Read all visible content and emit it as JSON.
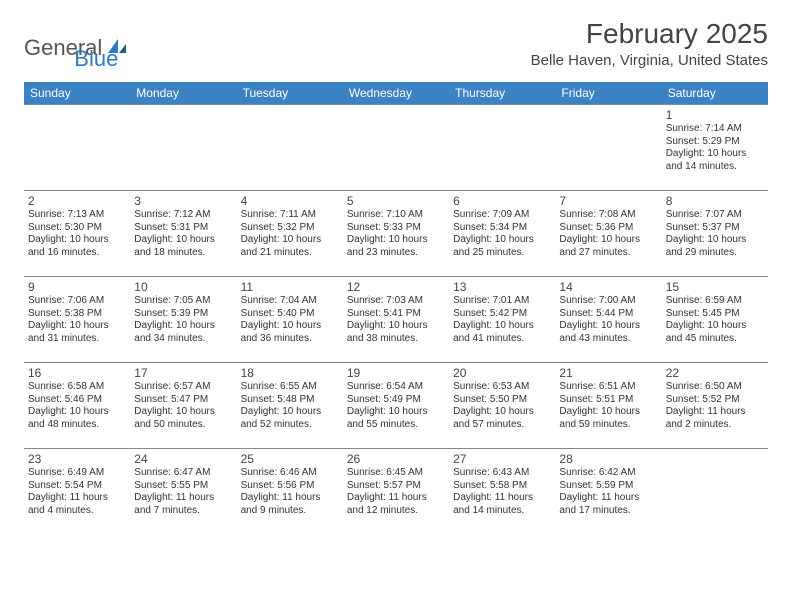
{
  "logo": {
    "general": "General",
    "blue": "Blue"
  },
  "title": "February 2025",
  "location": "Belle Haven, Virginia, United States",
  "colors": {
    "header_bg": "#3b82c4",
    "header_text": "#ffffff",
    "border": "#7a8a9a",
    "logo_blue": "#2f7bbf",
    "logo_gray": "#555555"
  },
  "weekdays": [
    "Sunday",
    "Monday",
    "Tuesday",
    "Wednesday",
    "Thursday",
    "Friday",
    "Saturday"
  ],
  "weeks": [
    [
      null,
      null,
      null,
      null,
      null,
      null,
      {
        "n": "1",
        "sr": "Sunrise: 7:14 AM",
        "ss": "Sunset: 5:29 PM",
        "dl": "Daylight: 10 hours and 14 minutes."
      }
    ],
    [
      {
        "n": "2",
        "sr": "Sunrise: 7:13 AM",
        "ss": "Sunset: 5:30 PM",
        "dl": "Daylight: 10 hours and 16 minutes."
      },
      {
        "n": "3",
        "sr": "Sunrise: 7:12 AM",
        "ss": "Sunset: 5:31 PM",
        "dl": "Daylight: 10 hours and 18 minutes."
      },
      {
        "n": "4",
        "sr": "Sunrise: 7:11 AM",
        "ss": "Sunset: 5:32 PM",
        "dl": "Daylight: 10 hours and 21 minutes."
      },
      {
        "n": "5",
        "sr": "Sunrise: 7:10 AM",
        "ss": "Sunset: 5:33 PM",
        "dl": "Daylight: 10 hours and 23 minutes."
      },
      {
        "n": "6",
        "sr": "Sunrise: 7:09 AM",
        "ss": "Sunset: 5:34 PM",
        "dl": "Daylight: 10 hours and 25 minutes."
      },
      {
        "n": "7",
        "sr": "Sunrise: 7:08 AM",
        "ss": "Sunset: 5:36 PM",
        "dl": "Daylight: 10 hours and 27 minutes."
      },
      {
        "n": "8",
        "sr": "Sunrise: 7:07 AM",
        "ss": "Sunset: 5:37 PM",
        "dl": "Daylight: 10 hours and 29 minutes."
      }
    ],
    [
      {
        "n": "9",
        "sr": "Sunrise: 7:06 AM",
        "ss": "Sunset: 5:38 PM",
        "dl": "Daylight: 10 hours and 31 minutes."
      },
      {
        "n": "10",
        "sr": "Sunrise: 7:05 AM",
        "ss": "Sunset: 5:39 PM",
        "dl": "Daylight: 10 hours and 34 minutes."
      },
      {
        "n": "11",
        "sr": "Sunrise: 7:04 AM",
        "ss": "Sunset: 5:40 PM",
        "dl": "Daylight: 10 hours and 36 minutes."
      },
      {
        "n": "12",
        "sr": "Sunrise: 7:03 AM",
        "ss": "Sunset: 5:41 PM",
        "dl": "Daylight: 10 hours and 38 minutes."
      },
      {
        "n": "13",
        "sr": "Sunrise: 7:01 AM",
        "ss": "Sunset: 5:42 PM",
        "dl": "Daylight: 10 hours and 41 minutes."
      },
      {
        "n": "14",
        "sr": "Sunrise: 7:00 AM",
        "ss": "Sunset: 5:44 PM",
        "dl": "Daylight: 10 hours and 43 minutes."
      },
      {
        "n": "15",
        "sr": "Sunrise: 6:59 AM",
        "ss": "Sunset: 5:45 PM",
        "dl": "Daylight: 10 hours and 45 minutes."
      }
    ],
    [
      {
        "n": "16",
        "sr": "Sunrise: 6:58 AM",
        "ss": "Sunset: 5:46 PM",
        "dl": "Daylight: 10 hours and 48 minutes."
      },
      {
        "n": "17",
        "sr": "Sunrise: 6:57 AM",
        "ss": "Sunset: 5:47 PM",
        "dl": "Daylight: 10 hours and 50 minutes."
      },
      {
        "n": "18",
        "sr": "Sunrise: 6:55 AM",
        "ss": "Sunset: 5:48 PM",
        "dl": "Daylight: 10 hours and 52 minutes."
      },
      {
        "n": "19",
        "sr": "Sunrise: 6:54 AM",
        "ss": "Sunset: 5:49 PM",
        "dl": "Daylight: 10 hours and 55 minutes."
      },
      {
        "n": "20",
        "sr": "Sunrise: 6:53 AM",
        "ss": "Sunset: 5:50 PM",
        "dl": "Daylight: 10 hours and 57 minutes."
      },
      {
        "n": "21",
        "sr": "Sunrise: 6:51 AM",
        "ss": "Sunset: 5:51 PM",
        "dl": "Daylight: 10 hours and 59 minutes."
      },
      {
        "n": "22",
        "sr": "Sunrise: 6:50 AM",
        "ss": "Sunset: 5:52 PM",
        "dl": "Daylight: 11 hours and 2 minutes."
      }
    ],
    [
      {
        "n": "23",
        "sr": "Sunrise: 6:49 AM",
        "ss": "Sunset: 5:54 PM",
        "dl": "Daylight: 11 hours and 4 minutes."
      },
      {
        "n": "24",
        "sr": "Sunrise: 6:47 AM",
        "ss": "Sunset: 5:55 PM",
        "dl": "Daylight: 11 hours and 7 minutes."
      },
      {
        "n": "25",
        "sr": "Sunrise: 6:46 AM",
        "ss": "Sunset: 5:56 PM",
        "dl": "Daylight: 11 hours and 9 minutes."
      },
      {
        "n": "26",
        "sr": "Sunrise: 6:45 AM",
        "ss": "Sunset: 5:57 PM",
        "dl": "Daylight: 11 hours and 12 minutes."
      },
      {
        "n": "27",
        "sr": "Sunrise: 6:43 AM",
        "ss": "Sunset: 5:58 PM",
        "dl": "Daylight: 11 hours and 14 minutes."
      },
      {
        "n": "28",
        "sr": "Sunrise: 6:42 AM",
        "ss": "Sunset: 5:59 PM",
        "dl": "Daylight: 11 hours and 17 minutes."
      },
      null
    ]
  ]
}
